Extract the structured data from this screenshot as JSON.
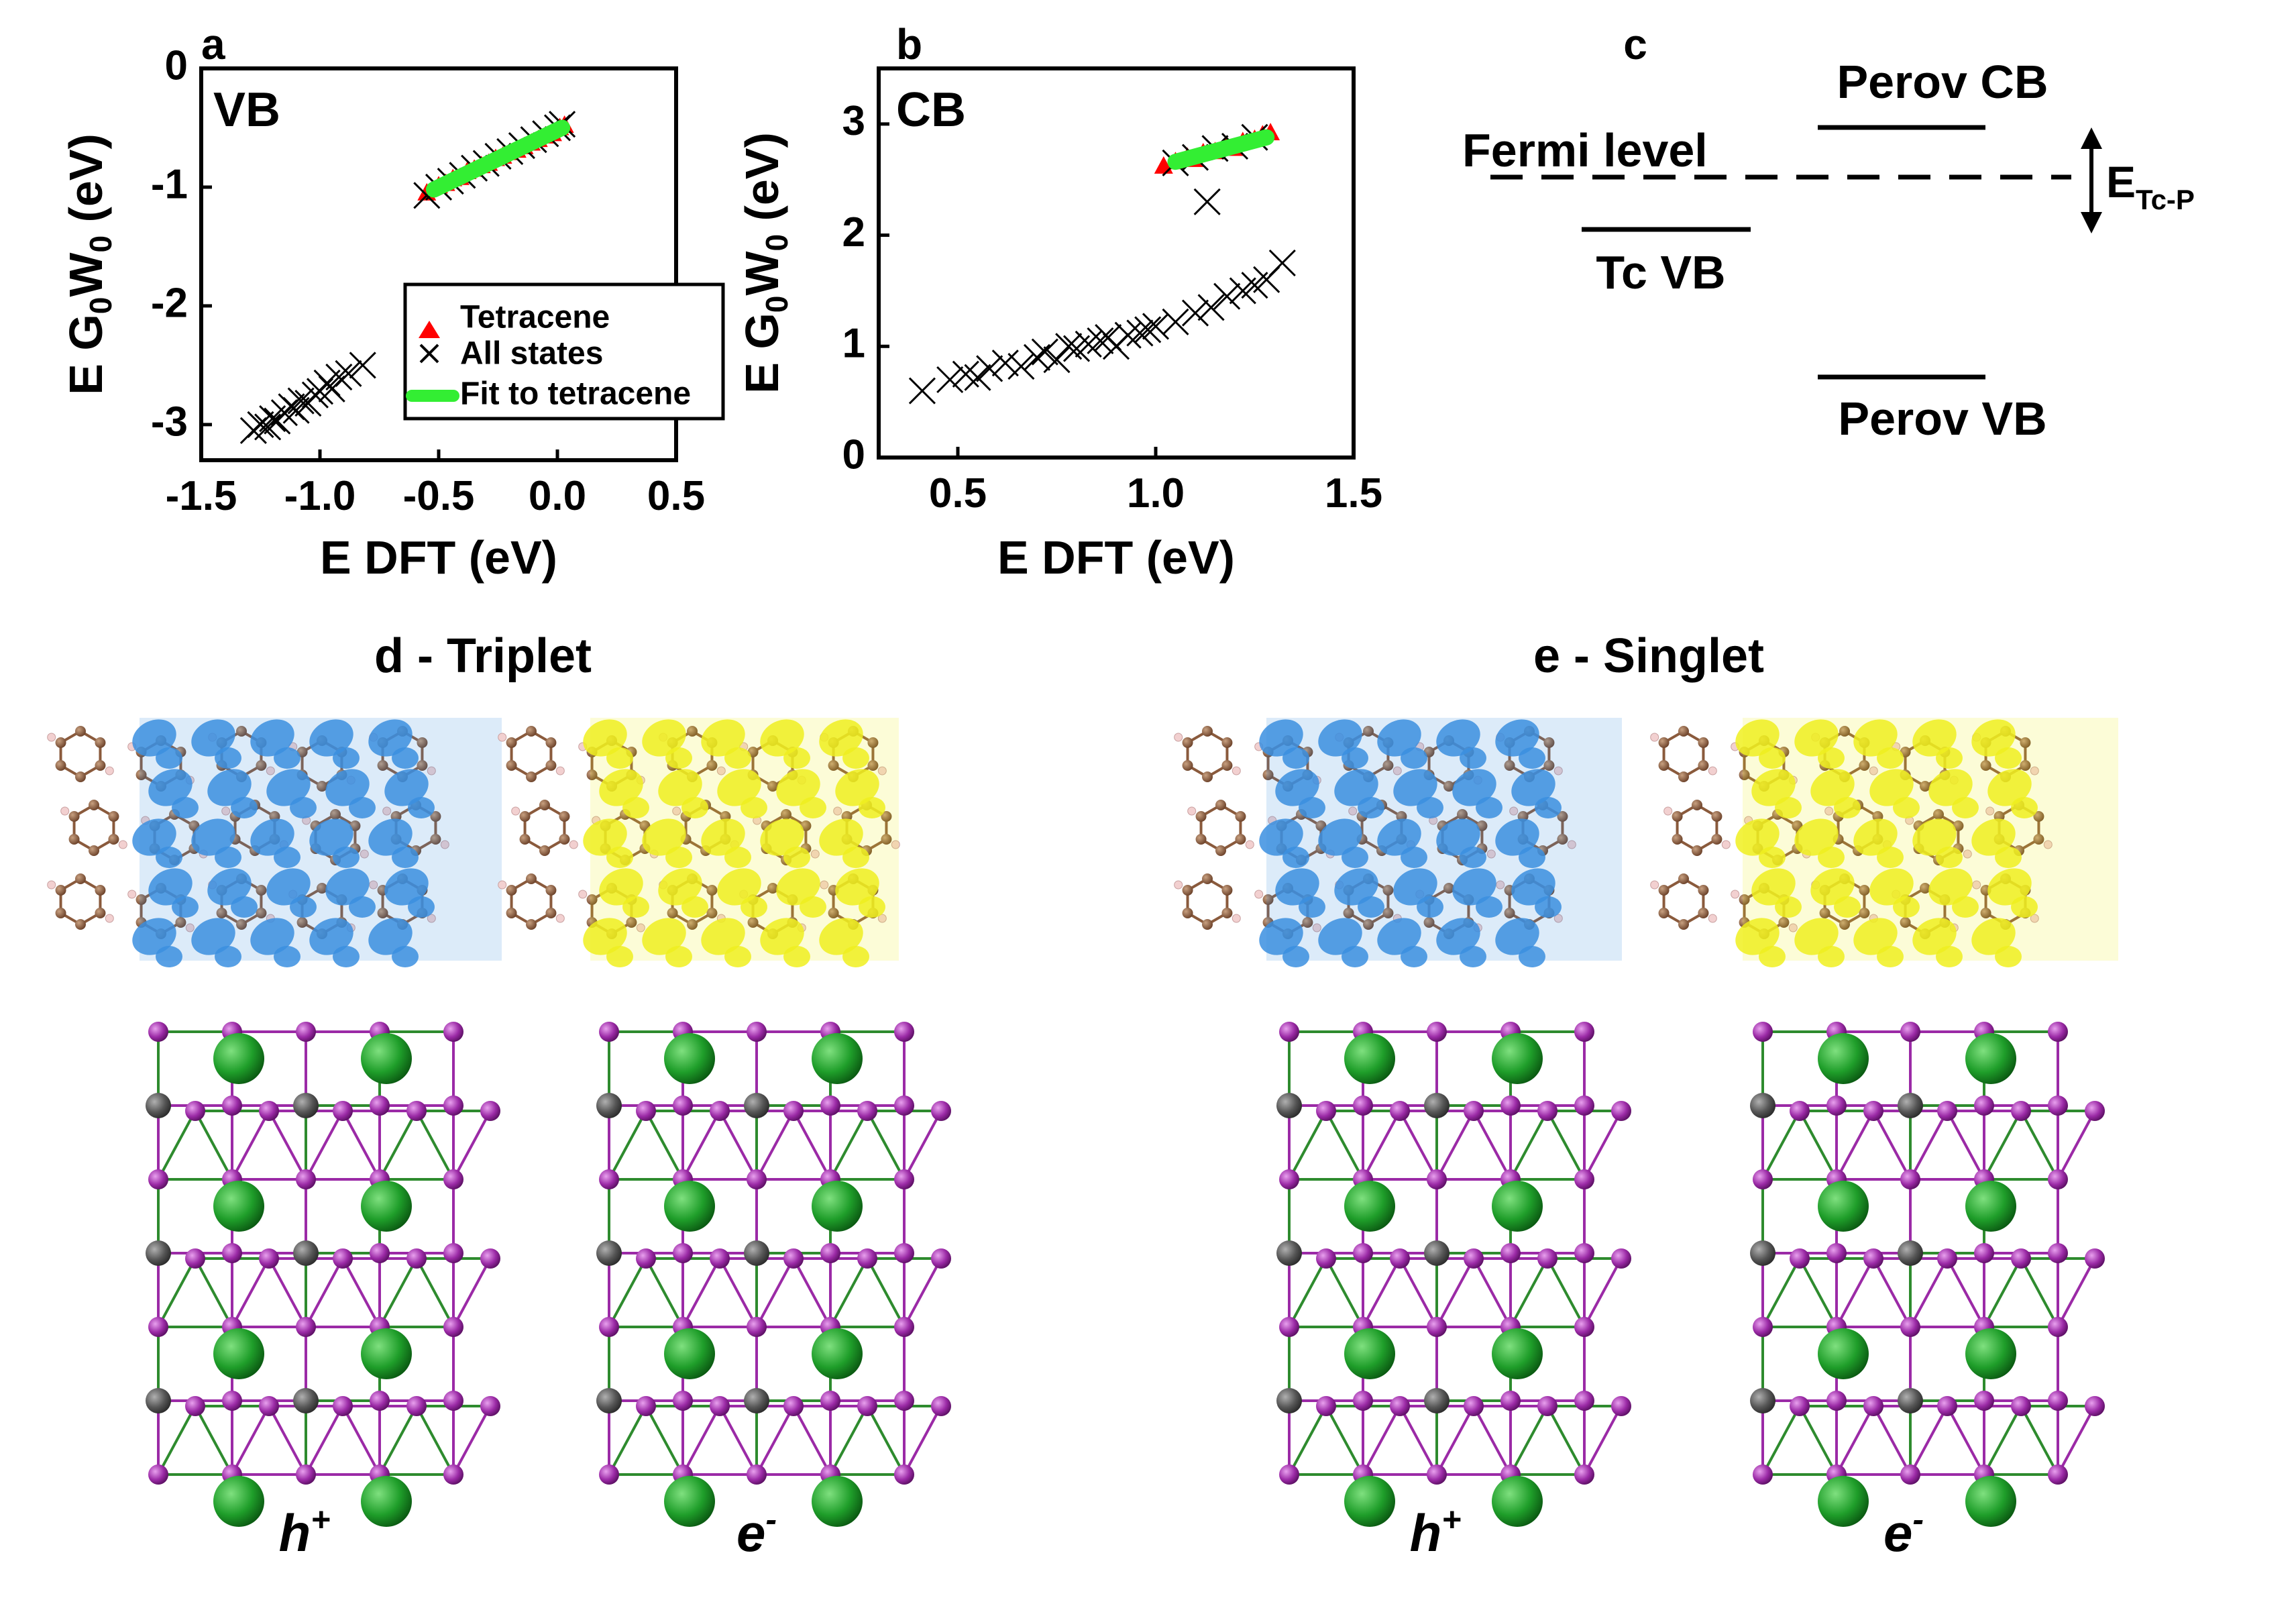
{
  "panel_labels": {
    "a": "a",
    "b": "b",
    "c": "c"
  },
  "panel_c": {
    "labels": {
      "perov_cb": "Perov CB",
      "fermi": "Fermi level",
      "tc_vb": "Tc VB",
      "perov_vb": "Perov VB",
      "e_main": "E",
      "e_sub": "Tc-P"
    }
  },
  "panel_d": {
    "title": "d - Triplet",
    "hole_label": "h",
    "hole_sup": "+",
    "elec_label": "e",
    "elec_sup": "-"
  },
  "panel_e": {
    "title": "e - Singlet",
    "hole_label": "h",
    "hole_sup": "+",
    "elec_label": "e",
    "elec_sup": "-"
  },
  "colors": {
    "tetracene": "#ff0000",
    "all_states": "#000000",
    "fit": "#33ee33",
    "hole_density": "#3b8fe0",
    "electron_density": "#f0f020",
    "carbon": "#8a5a3c",
    "hydrogen": "#f2d0d0",
    "iodine": "#9b2aa6",
    "cesium": "#1f9e2a",
    "lead": "#555555"
  },
  "chart_data": [
    {
      "type": "scatter",
      "panel_tag": "VB",
      "xlabel": "E DFT (eV)",
      "ylabel_main": "E G",
      "ylabel_sub1": "0",
      "ylabel_mid": "W",
      "ylabel_sub2": "0",
      "ylabel_unit": " (eV)",
      "xlim": [
        -1.5,
        0.5
      ],
      "ylim": [
        -3.3,
        0
      ],
      "xticks": [
        -1.5,
        -1.0,
        -0.5,
        0.0,
        0.5
      ],
      "xtick_labels": [
        "-1.5",
        "-1.0",
        "-0.5",
        "0.0",
        "0.5"
      ],
      "yticks": [
        0,
        -1,
        -2,
        -3
      ],
      "ytick_labels": [
        "0",
        "-1",
        "-2",
        "-3"
      ],
      "legend_position": "lower-right",
      "series": [
        {
          "name": "Tetracene",
          "marker": "triangle",
          "x": [
            -0.55,
            -0.5,
            -0.47,
            -0.44,
            -0.41,
            -0.38,
            -0.35,
            -0.32,
            -0.29,
            -0.26,
            -0.23,
            -0.2,
            -0.17,
            -0.14,
            -0.11,
            -0.08,
            -0.05,
            -0.02,
            0.01,
            0.03
          ],
          "y": [
            -1.05,
            -0.99,
            -0.97,
            -0.93,
            -0.92,
            -0.87,
            -0.85,
            -0.82,
            -0.8,
            -0.76,
            -0.74,
            -0.71,
            -0.69,
            -0.66,
            -0.63,
            -0.6,
            -0.57,
            -0.55,
            -0.5,
            -0.48
          ]
        },
        {
          "name": "All states",
          "marker": "x",
          "x": [
            -1.28,
            -1.25,
            -1.22,
            -1.2,
            -1.18,
            -1.15,
            -1.12,
            -1.1,
            -1.08,
            -1.05,
            -1.02,
            -1.0,
            -0.97,
            -0.95,
            -0.92,
            -0.88,
            -0.82,
            -0.55,
            -0.5,
            -0.45,
            -0.4,
            -0.35,
            -0.3,
            -0.25,
            -0.2,
            -0.15,
            -0.1,
            -0.05,
            0.0,
            0.02
          ],
          "y": [
            -3.05,
            -3.0,
            -3.02,
            -2.95,
            -2.97,
            -2.9,
            -2.85,
            -2.88,
            -2.8,
            -2.82,
            -2.75,
            -2.72,
            -2.65,
            -2.7,
            -2.6,
            -2.57,
            -2.5,
            -1.07,
            -1.0,
            -0.95,
            -0.9,
            -0.84,
            -0.8,
            -0.74,
            -0.7,
            -0.65,
            -0.6,
            -0.55,
            -0.5,
            -0.47
          ]
        },
        {
          "name": "Fit to tetracene",
          "marker": "line",
          "x": [
            -0.52,
            0.02
          ],
          "y": [
            -1.02,
            -0.5
          ]
        }
      ]
    },
    {
      "type": "scatter",
      "panel_tag": "CB",
      "xlabel": "E DFT (eV)",
      "ylabel_main": "E G",
      "ylabel_sub1": "0",
      "ylabel_mid": "W",
      "ylabel_sub2": "0",
      "ylabel_unit": " (eV)",
      "xlim": [
        0.3,
        1.5
      ],
      "ylim": [
        0,
        3.5
      ],
      "xticks": [
        0.5,
        1.0,
        1.5
      ],
      "xtick_labels": [
        "0.5",
        "1.0",
        "1.5"
      ],
      "yticks": [
        0,
        1,
        2,
        3
      ],
      "ytick_labels": [
        "0",
        "1",
        "2",
        "3"
      ],
      "series": [
        {
          "name": "Tetracene",
          "marker": "triangle",
          "x": [
            1.02,
            1.05,
            1.08,
            1.1,
            1.12,
            1.15,
            1.18,
            1.2,
            1.22,
            1.25,
            1.27,
            1.29
          ],
          "y": [
            2.62,
            2.66,
            2.7,
            2.68,
            2.74,
            2.75,
            2.8,
            2.78,
            2.84,
            2.86,
            2.9,
            2.92
          ]
        },
        {
          "name": "All states",
          "marker": "x",
          "x": [
            0.41,
            0.48,
            0.52,
            0.55,
            0.58,
            0.62,
            0.66,
            0.7,
            0.72,
            0.75,
            0.78,
            0.8,
            0.83,
            0.86,
            0.88,
            0.9,
            0.93,
            0.96,
            0.98,
            1.0,
            1.05,
            1.1,
            1.14,
            1.18,
            1.22,
            1.25,
            1.28,
            1.32,
            1.05,
            1.1,
            1.15,
            1.2,
            1.25,
            1.13
          ],
          "y": [
            0.6,
            0.7,
            0.75,
            0.72,
            0.8,
            0.85,
            0.82,
            0.9,
            0.95,
            0.88,
            1.0,
            0.98,
            1.02,
            1.05,
            1.08,
            1.0,
            1.1,
            1.12,
            1.15,
            1.18,
            1.22,
            1.3,
            1.35,
            1.45,
            1.5,
            1.55,
            1.6,
            1.75,
            2.65,
            2.7,
            2.78,
            2.8,
            2.88,
            2.3
          ]
        },
        {
          "name": "Fit to tetracene",
          "marker": "line",
          "x": [
            1.05,
            1.28
          ],
          "y": [
            2.66,
            2.88
          ]
        }
      ]
    }
  ]
}
